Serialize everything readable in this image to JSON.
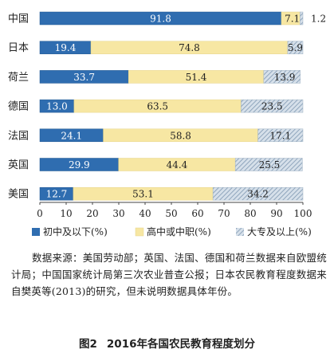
{
  "chart_data": {
    "type": "bar",
    "orientation": "horizontal",
    "stacked": true,
    "categories": [
      "中国",
      "日本",
      "荷兰",
      "德国",
      "法国",
      "英国",
      "美国"
    ],
    "series": [
      {
        "name": "初中及以下(%)",
        "color": "#2f6db0",
        "pattern": "solid",
        "values": [
          91.8,
          19.4,
          33.7,
          13.0,
          24.1,
          29.9,
          12.7
        ]
      },
      {
        "name": "高中或中职(%)",
        "color": "#f7e7a3",
        "pattern": "solid",
        "values": [
          7.1,
          74.8,
          51.4,
          63.5,
          58.8,
          44.4,
          53.1
        ]
      },
      {
        "name": "大专及以上(%)",
        "color": "#b8c9d8",
        "pattern": "hatched",
        "values": [
          1.2,
          5.9,
          13.9,
          23.5,
          17.1,
          25.5,
          34.2
        ]
      }
    ],
    "value_labels": [
      [
        "91.8",
        "19.4",
        "33.7",
        "13.0",
        "24.1",
        "29.9",
        "12.7"
      ],
      [
        "7.1",
        "74.8",
        "51.4",
        "63.5",
        "58.8",
        "44.4",
        "53.1"
      ],
      [
        "1.2",
        "5.9",
        "13.9",
        "23.5",
        "17.1",
        "25.5",
        "34.2"
      ]
    ],
    "x_ticks": [
      "0",
      "10",
      "20",
      "30",
      "40",
      "50",
      "60",
      "70",
      "80",
      "90",
      "100"
    ],
    "xlim": [
      0,
      100
    ],
    "xlabel": "",
    "ylabel": "",
    "grid": false,
    "legend_position": "bottom"
  },
  "source_note": "数据来源：美国劳动部；英国、法国、德国和荷兰数据来自欧盟统计局；中国国家统计局第三次农业普查公报；日本农民教育程度数据来自樊英等(2013)的研究，但未说明数据具体年份。",
  "figure_number": "图2",
  "figure_title": "2016年各国农民教育程度划分"
}
